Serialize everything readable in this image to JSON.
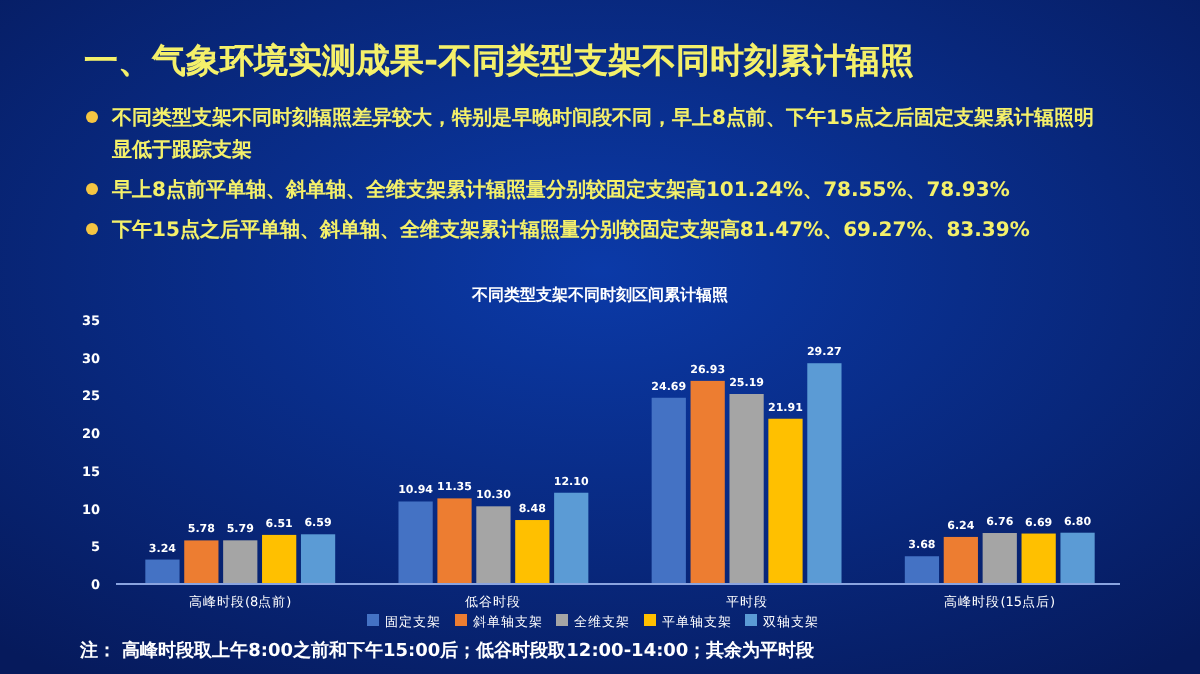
{
  "chart_data": {
    "type": "bar",
    "title": "一、气象环境实测成果-不同类型支架不同时刻累计辐照",
    "subtitle": "不同类型支架不同时刻区间累计辐照",
    "annotations": [
      "不同类型支架不同时刻辐照差异较大，特别是早晚时间段不同，早上8点前、下午15点之后固定支架累计辐照明显低于跟踪支架",
      "早上8点前平单轴、斜单轴、全维支架累计辐照量分别较固定支架高101.24%、78.55%、78.93%",
      "下午15点之后平单轴、斜单轴、全维支架累计辐照量分别较固定支架高81.47%、69.27%、83.39%",
      "注：  高峰时段取上午8:00之前和下午15:00后；低谷时段取12:00-14:00；其余为平时段"
    ],
    "categories": [
      "高峰时段(8点前)",
      "低谷时段",
      "平时段",
      "高峰时段(15点后)"
    ],
    "series": [
      {
        "name": "固定支架",
        "color": "#4472c4",
        "values": [
          3.24,
          10.94,
          24.69,
          3.68
        ],
        "value_labels": [
          "3.24",
          "10.94",
          "24.69",
          "3.68"
        ]
      },
      {
        "name": "斜单轴支架",
        "color": "#ed7d31",
        "values": [
          5.78,
          11.35,
          26.93,
          6.24
        ],
        "value_labels": [
          "5.78",
          "11.35",
          "26.93",
          "6.24"
        ]
      },
      {
        "name": "全维支架",
        "color": "#a5a5a5",
        "values": [
          5.79,
          10.3,
          25.19,
          6.76
        ],
        "value_labels": [
          "5.79",
          "10.30",
          "25.19",
          "6.76"
        ]
      },
      {
        "name": "平单轴支架",
        "color": "#ffc000",
        "values": [
          6.51,
          8.48,
          21.91,
          6.69
        ],
        "value_labels": [
          "6.51",
          "8.48",
          "21.91",
          "6.69"
        ]
      },
      {
        "name": "双轴支架",
        "color": "#5b9bd5",
        "values": [
          6.59,
          12.1,
          29.27,
          6.8
        ],
        "value_labels": [
          "6.59",
          "12.10",
          "29.27",
          "6.80"
        ]
      }
    ],
    "ylim": [
      0,
      35
    ],
    "yticks": [
      0,
      5,
      10,
      15,
      20,
      25,
      30,
      35
    ],
    "legend": "bottom",
    "grid": false
  }
}
